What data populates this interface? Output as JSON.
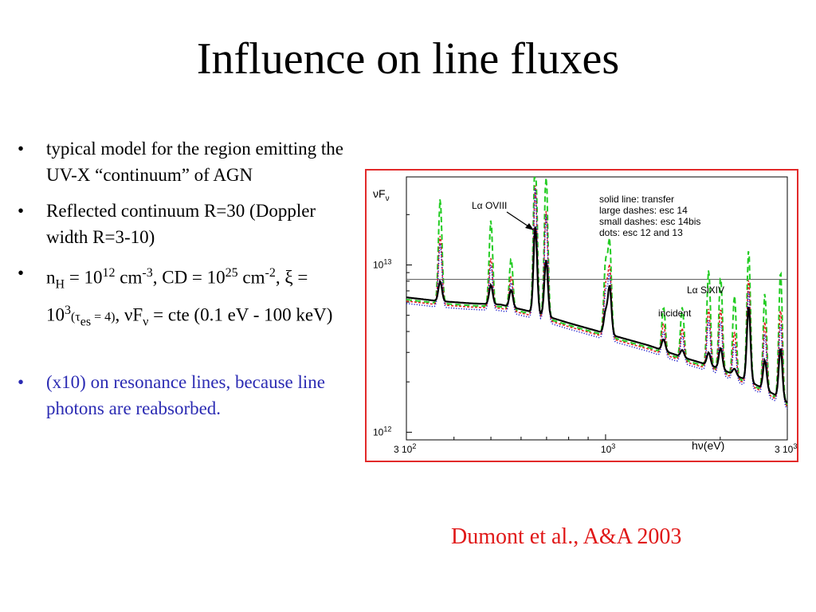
{
  "slide": {
    "title": "Influence on line fluxes",
    "bullets": {
      "b1": "typical model for the region emitting the UV-X “continuum” of AGN",
      "b2": "Reflected continuum R=30 (Doppler width R=3-10)",
      "b3": {
        "n": "n",
        "h_sub": "H",
        "eq1": " = 10",
        "exp12": "12",
        "cm": " cm",
        "exp_m3": "-3",
        "cd": ", CD = 10",
        "exp25": "25",
        "cm2": " cm",
        "exp_m2": "-2",
        "xi": ", ξ",
        "eq2": " = 10",
        "exp3": "3",
        "tau_open": "(τ",
        "tau_sub": "es",
        "tau_close": " = 4)",
        "nuf": ", νF",
        "nu_sub": "ν",
        "rest": " = cte (0.1 eV - 100 keV)"
      },
      "b4": "(x10) on resonance lines, because line photons are reabsorbed."
    },
    "citation": "Dumont et al., A&A 2003"
  },
  "colors": {
    "citation": "#e01818",
    "blue_text": "#2b2bb3",
    "frame": "#e22a2a",
    "transfer": "#000000",
    "esc14": "#22cc22",
    "esc14bis": "#e02020",
    "esc12_13": "#2020cc"
  },
  "chart_data": {
    "type": "line",
    "xscale": "log",
    "yscale": "log",
    "xlim": [
      300,
      3000
    ],
    "ylim": [
      1000000000000.0,
      10000000000000.0
    ],
    "ylabel": "νF",
    "ylabel_sub": "ν",
    "xlabel": "hν(eV)",
    "x_ticks": [
      {
        "value": 300,
        "label": "3 10",
        "sup": "2"
      },
      {
        "value": 1000,
        "label": "10",
        "sup": "3"
      },
      {
        "value": 3000,
        "label": "3 10",
        "sup": "3"
      }
    ],
    "y_ticks": [
      {
        "value": 1000000000000.0,
        "label": "10",
        "sup": "12"
      },
      {
        "value": 10000000000000.0,
        "label": "10",
        "sup": "13"
      }
    ],
    "legend": [
      "solid line: transfer",
      "large dashes: esc 14",
      "small dashes: esc 14bis",
      "dots: esc 12 and 13"
    ],
    "annotations": {
      "lyman_oviii": "Lα OVIII",
      "lyman_sixiv": "Lα SiXIV",
      "incident": "incident"
    },
    "incident_level": 8200000000000.0,
    "continuum": {
      "x": [
        300,
        360,
        440,
        530,
        650,
        800,
        1000,
        1300,
        1600,
        2000,
        2400,
        2750,
        3000
      ],
      "y": [
        6400000000000.0,
        6100000000000.0,
        5900000000000.0,
        5800000000000.0,
        5200000000000.0,
        4500000000000.0,
        3900000000000.0,
        3300000000000.0,
        2800000000000.0,
        2400000000000.0,
        2000000000000.0,
        1700000000000.0,
        1500000000000.0
      ]
    },
    "series": [
      {
        "name": "transfer",
        "style": "solid",
        "peaks": [
          {
            "x": 368,
            "y": 8000000000000.0
          },
          {
            "x": 500,
            "y": 7600000000000.0
          },
          {
            "x": 565,
            "y": 7100000000000.0
          },
          {
            "x": 654,
            "y": 17000000000000.0
          },
          {
            "x": 698,
            "y": 10700000000000.0
          },
          {
            "x": 1000,
            "y": 5200000000000.0
          },
          {
            "x": 1025,
            "y": 7400000000000.0
          },
          {
            "x": 1420,
            "y": 3600000000000.0
          },
          {
            "x": 1590,
            "y": 3100000000000.0
          },
          {
            "x": 1865,
            "y": 3000000000000.0
          },
          {
            "x": 2005,
            "y": 3200000000000.0
          },
          {
            "x": 2180,
            "y": 2400000000000.0
          },
          {
            "x": 2375,
            "y": 5700000000000.0
          },
          {
            "x": 2620,
            "y": 2700000000000.0
          },
          {
            "x": 2880,
            "y": 3200000000000.0
          }
        ]
      },
      {
        "name": "esc 14",
        "style": "large-dash",
        "peaks": [
          {
            "x": 368,
            "y": 25000000000000.0
          },
          {
            "x": 500,
            "y": 18500000000000.0
          },
          {
            "x": 565,
            "y": 11000000000000.0
          },
          {
            "x": 654,
            "y": 56000000000000.0
          },
          {
            "x": 698,
            "y": 36000000000000.0
          },
          {
            "x": 1000,
            "y": 10000000000000.0
          },
          {
            "x": 1025,
            "y": 13500000000000.0
          },
          {
            "x": 1420,
            "y": 5600000000000.0
          },
          {
            "x": 1590,
            "y": 5600000000000.0
          },
          {
            "x": 1865,
            "y": 9400000000000.0
          },
          {
            "x": 2005,
            "y": 8600000000000.0
          },
          {
            "x": 2180,
            "y": 6600000000000.0
          },
          {
            "x": 2375,
            "y": 12500000000000.0
          },
          {
            "x": 2620,
            "y": 6800000000000.0
          },
          {
            "x": 2880,
            "y": 9300000000000.0
          }
        ]
      },
      {
        "name": "esc 14bis",
        "style": "small-dash",
        "peaks": [
          {
            "x": 368,
            "y": 15000000000000.0
          },
          {
            "x": 500,
            "y": 11000000000000.0
          },
          {
            "x": 565,
            "y": 8600000000000.0
          },
          {
            "x": 654,
            "y": 30000000000000.0
          },
          {
            "x": 698,
            "y": 21000000000000.0
          },
          {
            "x": 1000,
            "y": 7400000000000.0
          },
          {
            "x": 1025,
            "y": 9600000000000.0
          },
          {
            "x": 1420,
            "y": 4500000000000.0
          },
          {
            "x": 1590,
            "y": 4200000000000.0
          },
          {
            "x": 1865,
            "y": 5500000000000.0
          },
          {
            "x": 2005,
            "y": 5500000000000.0
          },
          {
            "x": 2180,
            "y": 4000000000000.0
          },
          {
            "x": 2375,
            "y": 8300000000000.0
          },
          {
            "x": 2620,
            "y": 4600000000000.0
          },
          {
            "x": 2880,
            "y": 5500000000000.0
          }
        ]
      },
      {
        "name": "esc 12 and 13",
        "style": "dots",
        "peaks": [
          {
            "x": 368,
            "y": 13500000000000.0
          },
          {
            "x": 500,
            "y": 10000000000000.0
          },
          {
            "x": 565,
            "y": 7900000000000.0
          },
          {
            "x": 654,
            "y": 29000000000000.0
          },
          {
            "x": 698,
            "y": 20000000000000.0
          },
          {
            "x": 1000,
            "y": 6700000000000.0
          },
          {
            "x": 1025,
            "y": 8500000000000.0
          },
          {
            "x": 1420,
            "y": 4000000000000.0
          },
          {
            "x": 1590,
            "y": 3800000000000.0
          },
          {
            "x": 1865,
            "y": 4700000000000.0
          },
          {
            "x": 2005,
            "y": 4600000000000.0
          },
          {
            "x": 2180,
            "y": 3400000000000.0
          },
          {
            "x": 2375,
            "y": 7100000000000.0
          },
          {
            "x": 2620,
            "y": 3900000000000.0
          },
          {
            "x": 2880,
            "y": 4500000000000.0
          }
        ]
      }
    ]
  }
}
